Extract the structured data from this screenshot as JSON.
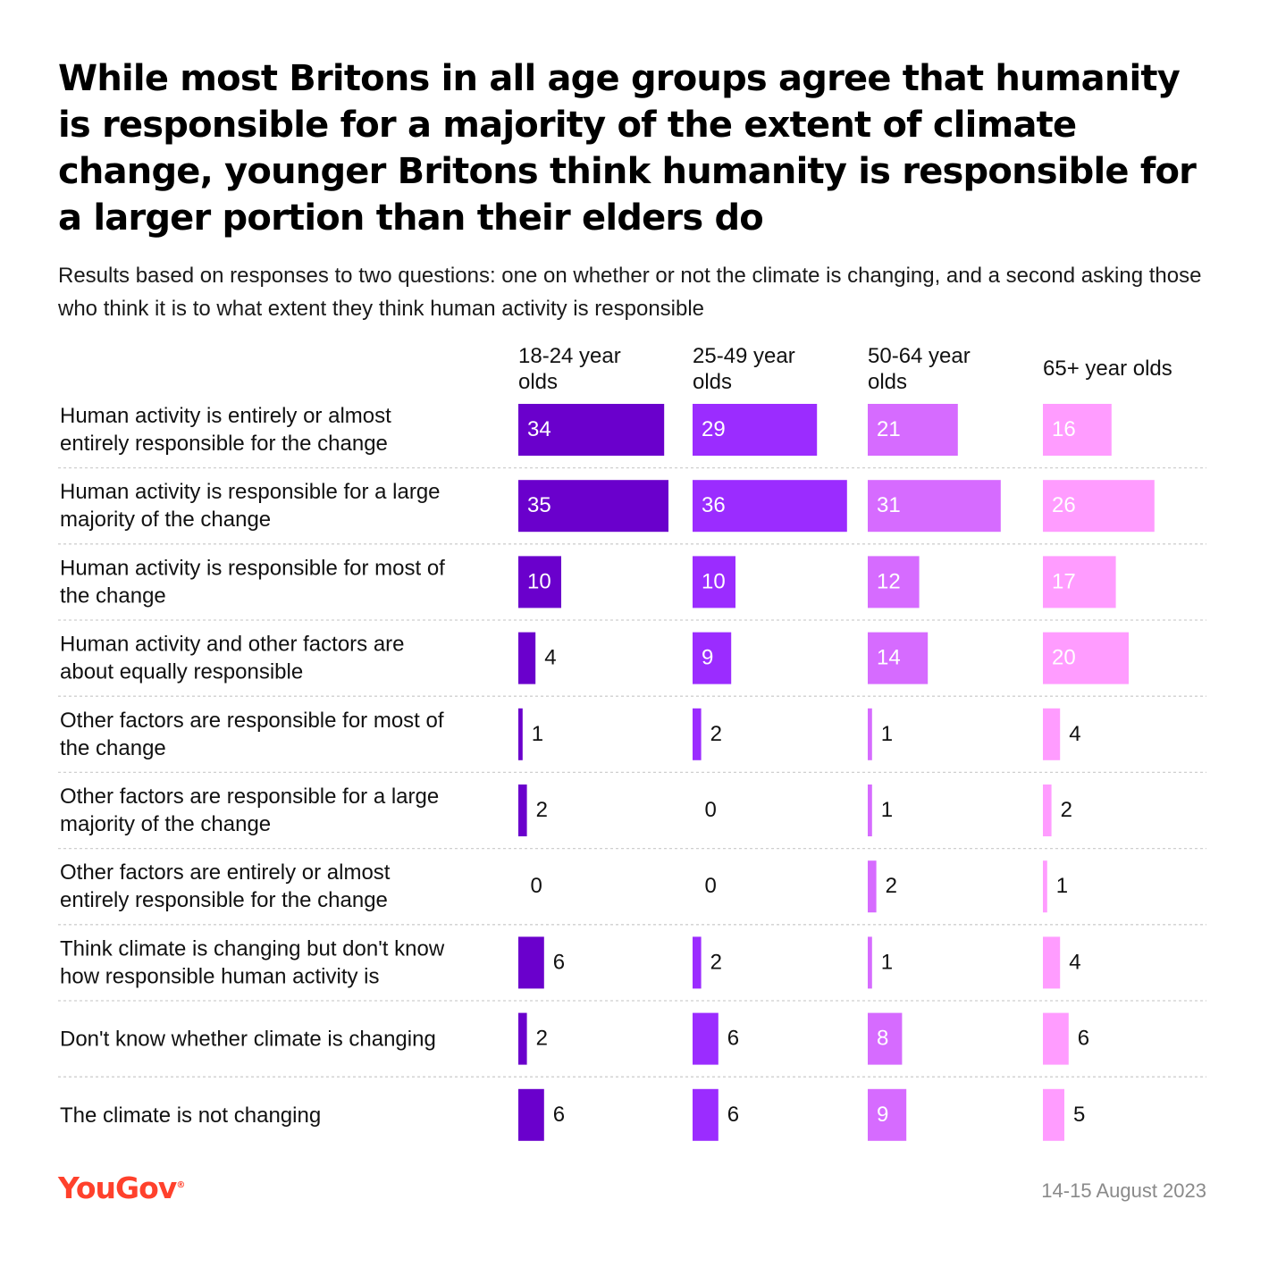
{
  "header": {
    "title": "While most Britons in all age groups agree that humanity is responsible for a majority of the extent of climate change, younger Britons think humanity is responsible for a larger portion than their elders do",
    "subtitle": "Results based on responses to two questions: one on whether or not the climate is changing, and a second asking those who think it is to what extent they think human activity is responsible"
  },
  "footer": {
    "logo_text": "YouGov",
    "logo_mark": "®",
    "date": "14-15 August 2023"
  },
  "chart_data": {
    "type": "bar",
    "orientation": "horizontal",
    "layout": "small-multiples by column",
    "unit": "%",
    "categories": [
      [
        "Human activity is entirely or almost",
        "entirely responsible for the change"
      ],
      [
        "Human activity is responsible for a large",
        "majority of the change"
      ],
      [
        "Human activity is responsible for most of",
        "the change"
      ],
      [
        "Human activity and other factors are",
        "about equally responsible"
      ],
      [
        "Other factors are responsible for most of",
        "the change"
      ],
      [
        "Other factors are responsible for a large",
        "majority of the change"
      ],
      [
        "Other factors are entirely or almost",
        "entirely responsible for the change"
      ],
      [
        "Think climate is changing but don't know",
        "how responsible human activity is"
      ],
      [
        "Don't know whether climate is changing"
      ],
      [
        "The climate is not changing"
      ]
    ],
    "series": [
      {
        "name": [
          "18-24 year",
          "olds"
        ],
        "color": "#6a00cc",
        "values": [
          34,
          35,
          10,
          4,
          1,
          2,
          0,
          6,
          2,
          6
        ]
      },
      {
        "name": [
          "25-49 year",
          "olds"
        ],
        "color": "#9b2cff",
        "values": [
          29,
          36,
          10,
          9,
          2,
          0,
          0,
          2,
          6,
          6
        ]
      },
      {
        "name": [
          "50-64 year",
          "olds"
        ],
        "color": "#d66bff",
        "values": [
          21,
          31,
          12,
          14,
          1,
          1,
          2,
          1,
          8,
          9
        ]
      },
      {
        "name": [
          "65+ year olds"
        ],
        "color": "#ff9cff",
        "values": [
          16,
          26,
          17,
          20,
          4,
          2,
          1,
          4,
          6,
          5
        ]
      }
    ],
    "label_inside_threshold": 7,
    "xlim": [
      0,
      36
    ],
    "grid": false,
    "legend": "column headers"
  }
}
